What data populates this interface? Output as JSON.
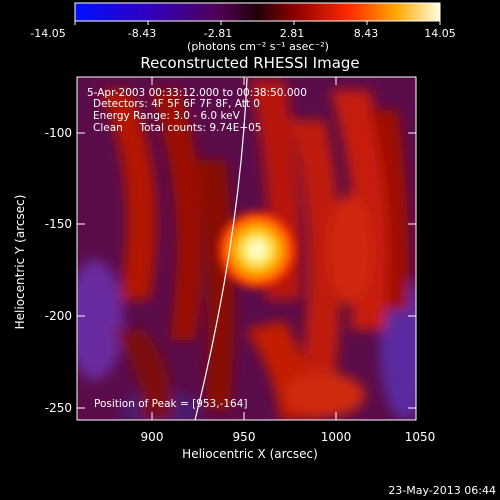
{
  "colorbar": {
    "ticks": [
      "-14.05",
      "-8.43",
      "-2.81",
      "2.81",
      "8.43",
      "14.05"
    ],
    "units_label": "(photons cm⁻² s⁻¹ asec⁻²)"
  },
  "plot": {
    "title": "Reconstructed RHESSI Image",
    "info_lines": [
      "5-Apr-2003 00:33:12.000 to 00:38:50.000",
      "Detectors: 4F 5F 6F 7F 8F, Att 0",
      "Energy Range: 3.0 - 6.0 keV",
      "Clean     Total counts: 9.74E+05"
    ],
    "peak_label": "Position of Peak = [953,-164]",
    "x_axis_label": "Heliocentric X (arcsec)",
    "y_axis_label": "Heliocentric Y (arcsec)",
    "x_ticks": [
      "900",
      "950",
      "1000",
      "1050"
    ],
    "y_ticks": [
      "-100",
      "-150",
      "-200",
      "-250"
    ]
  },
  "footer": {
    "timestamp": "23-May-2013 06:44"
  }
}
